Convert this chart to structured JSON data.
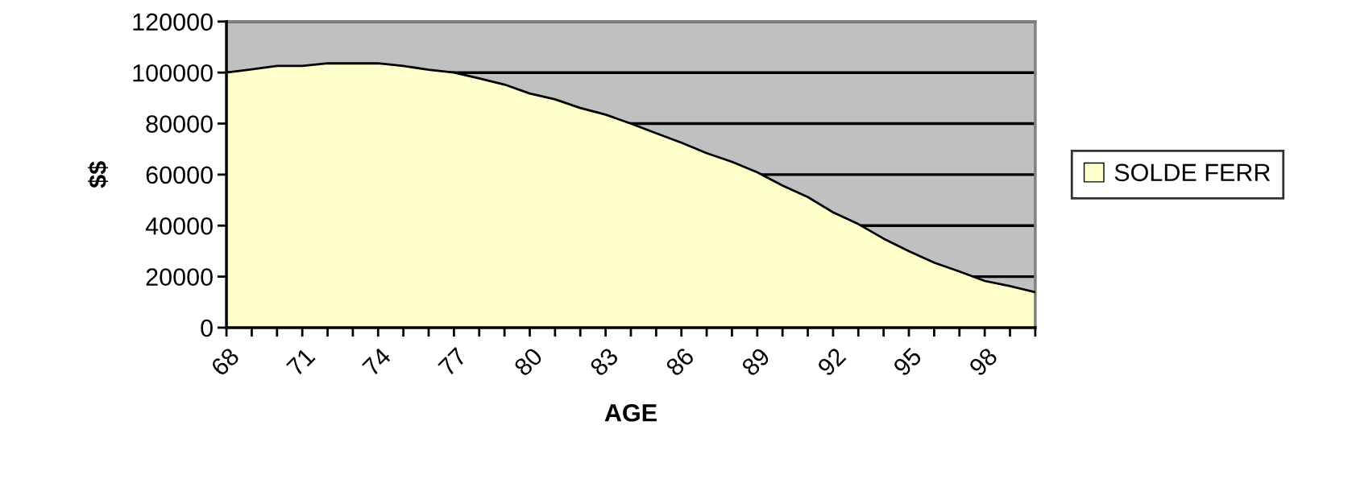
{
  "chart_data": {
    "type": "area",
    "xlabel": "AGE",
    "ylabel": "$$",
    "categories": [
      "68",
      null,
      null,
      "71",
      null,
      null,
      "74",
      null,
      null,
      "77",
      null,
      null,
      "80",
      null,
      null,
      "83",
      null,
      null,
      "86",
      null,
      null,
      "89",
      null,
      null,
      "92",
      null,
      null,
      "95",
      null,
      null,
      "98",
      null,
      null
    ],
    "series": [
      {
        "name": "SOLDE FERR",
        "color": "#ffffcc",
        "values": [
          100000,
          101300,
          102600,
          102600,
          103600,
          103600,
          103600,
          102600,
          101100,
          100000,
          97700,
          95300,
          91800,
          89500,
          86100,
          83500,
          80000,
          76200,
          72500,
          68400,
          65000,
          60900,
          55700,
          51200,
          45200,
          40600,
          34900,
          30000,
          25500,
          22000,
          18300,
          16300,
          13900
        ]
      }
    ],
    "ylim": [
      0,
      120000
    ],
    "yticks": [
      0,
      20000,
      40000,
      60000,
      80000,
      100000,
      120000
    ],
    "grid": "y",
    "legend": "right"
  }
}
